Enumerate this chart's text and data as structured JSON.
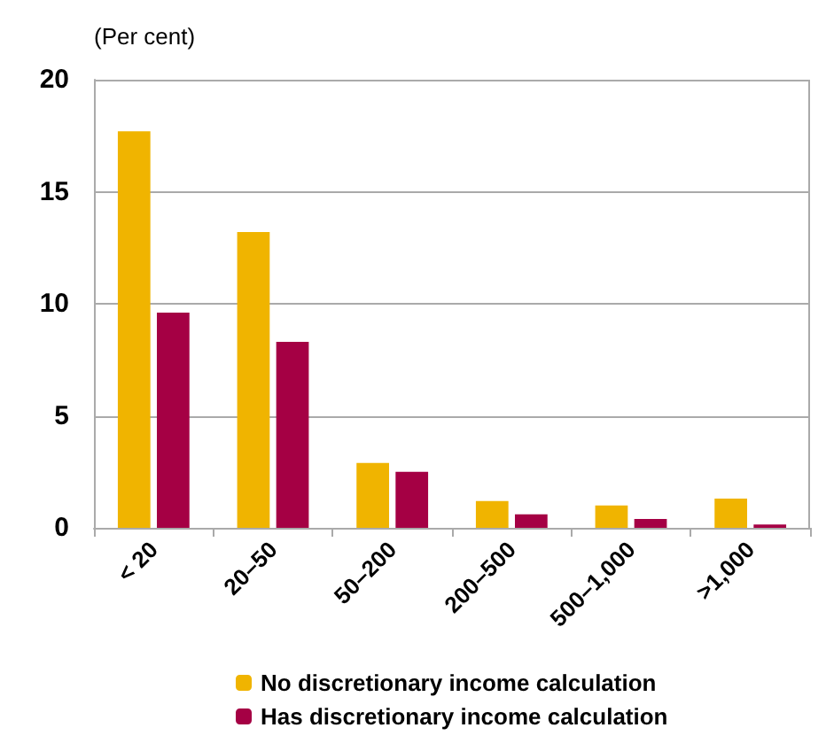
{
  "chart_data": {
    "type": "bar",
    "ylabel": "(Per cent)",
    "categories": [
      "< 20",
      "20–50",
      "50–200",
      "200–500",
      "500–1,000",
      ">1,000"
    ],
    "series": [
      {
        "name": "No discretionary income calculation",
        "color": "#f0b400",
        "values": [
          17.7,
          13.2,
          2.9,
          1.2,
          1.0,
          1.3
        ]
      },
      {
        "name": "Has discretionary income calculation",
        "color": "#a50044",
        "values": [
          9.6,
          8.3,
          2.5,
          0.6,
          0.4,
          0.15
        ]
      }
    ],
    "ylim": [
      0,
      20
    ],
    "yticks": [
      0,
      5,
      10,
      15,
      20
    ],
    "grid": "y",
    "legend": "bottom"
  }
}
